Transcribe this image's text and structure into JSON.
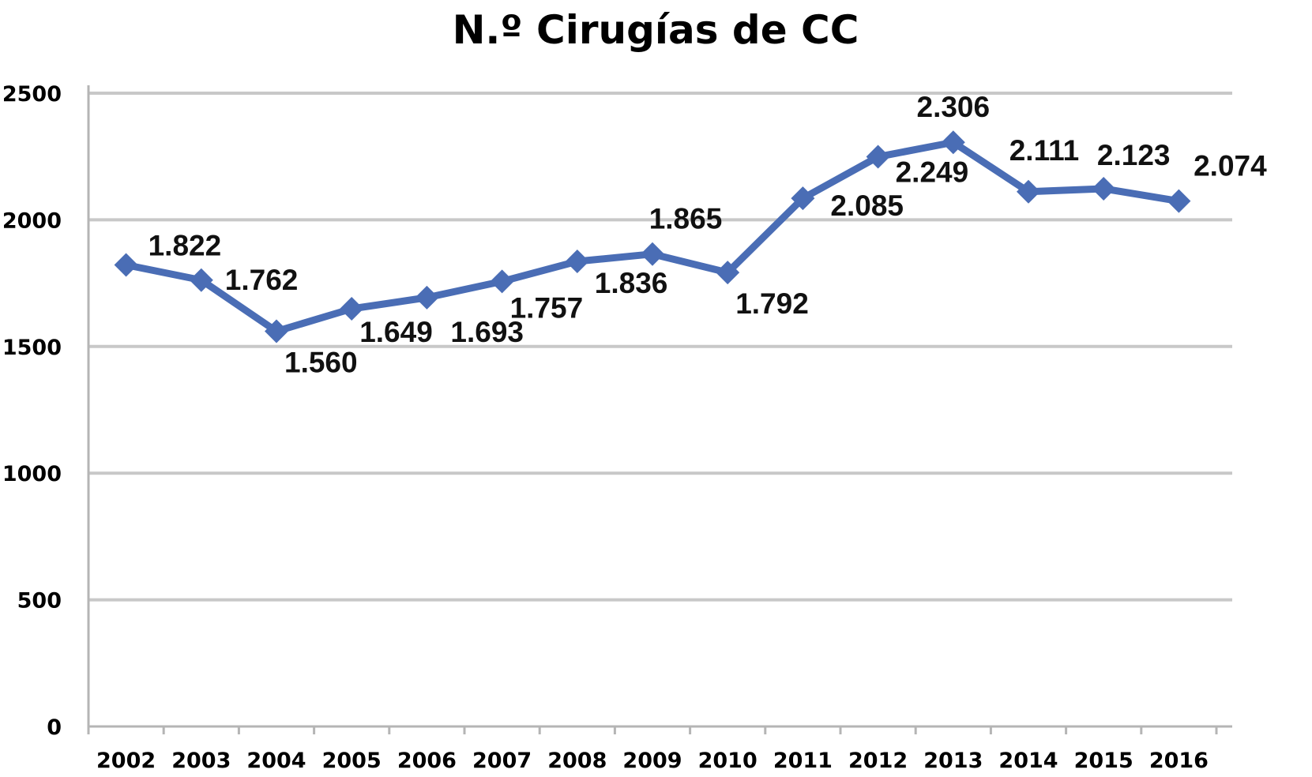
{
  "chart_data": {
    "type": "line",
    "title": "N.º Cirugías  de CC",
    "xlabel": "",
    "ylabel": "",
    "categories": [
      "2002",
      "2003",
      "2004",
      "2005",
      "2006",
      "2007",
      "2008",
      "2009",
      "2010",
      "2011",
      "2012",
      "2013",
      "2014",
      "2015",
      "2016"
    ],
    "series": [
      {
        "values": [
          1822,
          1762,
          1560,
          1649,
          1693,
          1757,
          1836,
          1865,
          1792,
          2085,
          2249,
          2306,
          2111,
          2123,
          2074
        ],
        "labels": [
          "1.822",
          "1.762",
          "1.560",
          "1.649",
          "1.693",
          "1.757",
          "1.836",
          "1.865",
          "1.792",
          "2.085",
          "2.249",
          "2.306",
          "2.111",
          "2.123",
          "2.074"
        ],
        "color": "#4a6db5"
      }
    ],
    "ylim": [
      0,
      2500
    ],
    "yticks": [
      "0",
      "500",
      "1000",
      "1500",
      "2000",
      "2500"
    ],
    "grid": true,
    "legend": "none"
  }
}
